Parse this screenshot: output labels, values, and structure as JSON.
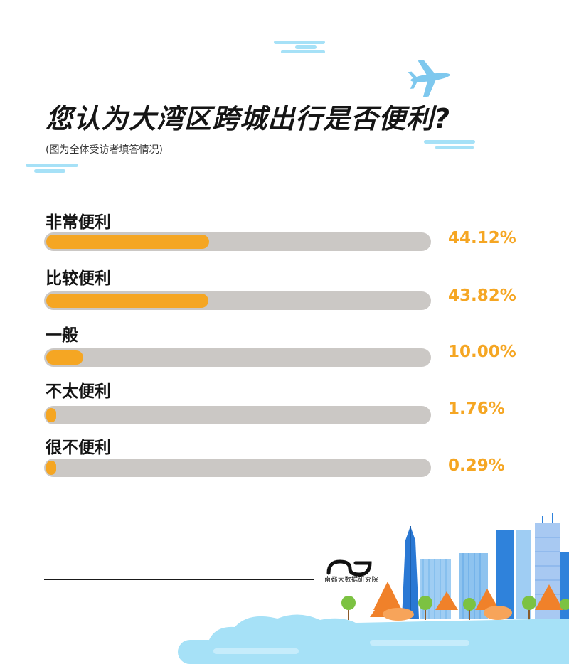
{
  "title": "您认为大湾区跨城出行是否便利?",
  "subtitle": "(图为全体受访者填答情况)",
  "brand": "南都大数据研究院",
  "colors": {
    "accent": "#f5a623",
    "track": "#cbc8c5",
    "sky": "#a6e1f7",
    "text": "#151515"
  },
  "chart_data": {
    "type": "bar",
    "orientation": "horizontal",
    "categories": [
      "非常便利",
      "比较便利",
      "一般",
      "不太便利",
      "很不便利"
    ],
    "values": [
      44.12,
      43.82,
      10.0,
      1.76,
      0.29
    ],
    "value_labels": [
      "44.12%",
      "43.82%",
      "10.00%",
      "1.76%",
      "0.29%"
    ],
    "xlim": [
      0,
      100
    ]
  },
  "icons": [
    "airplane-icon",
    "cloud-icon",
    "city-skyline-illustration",
    "brand-logo-icon"
  ]
}
